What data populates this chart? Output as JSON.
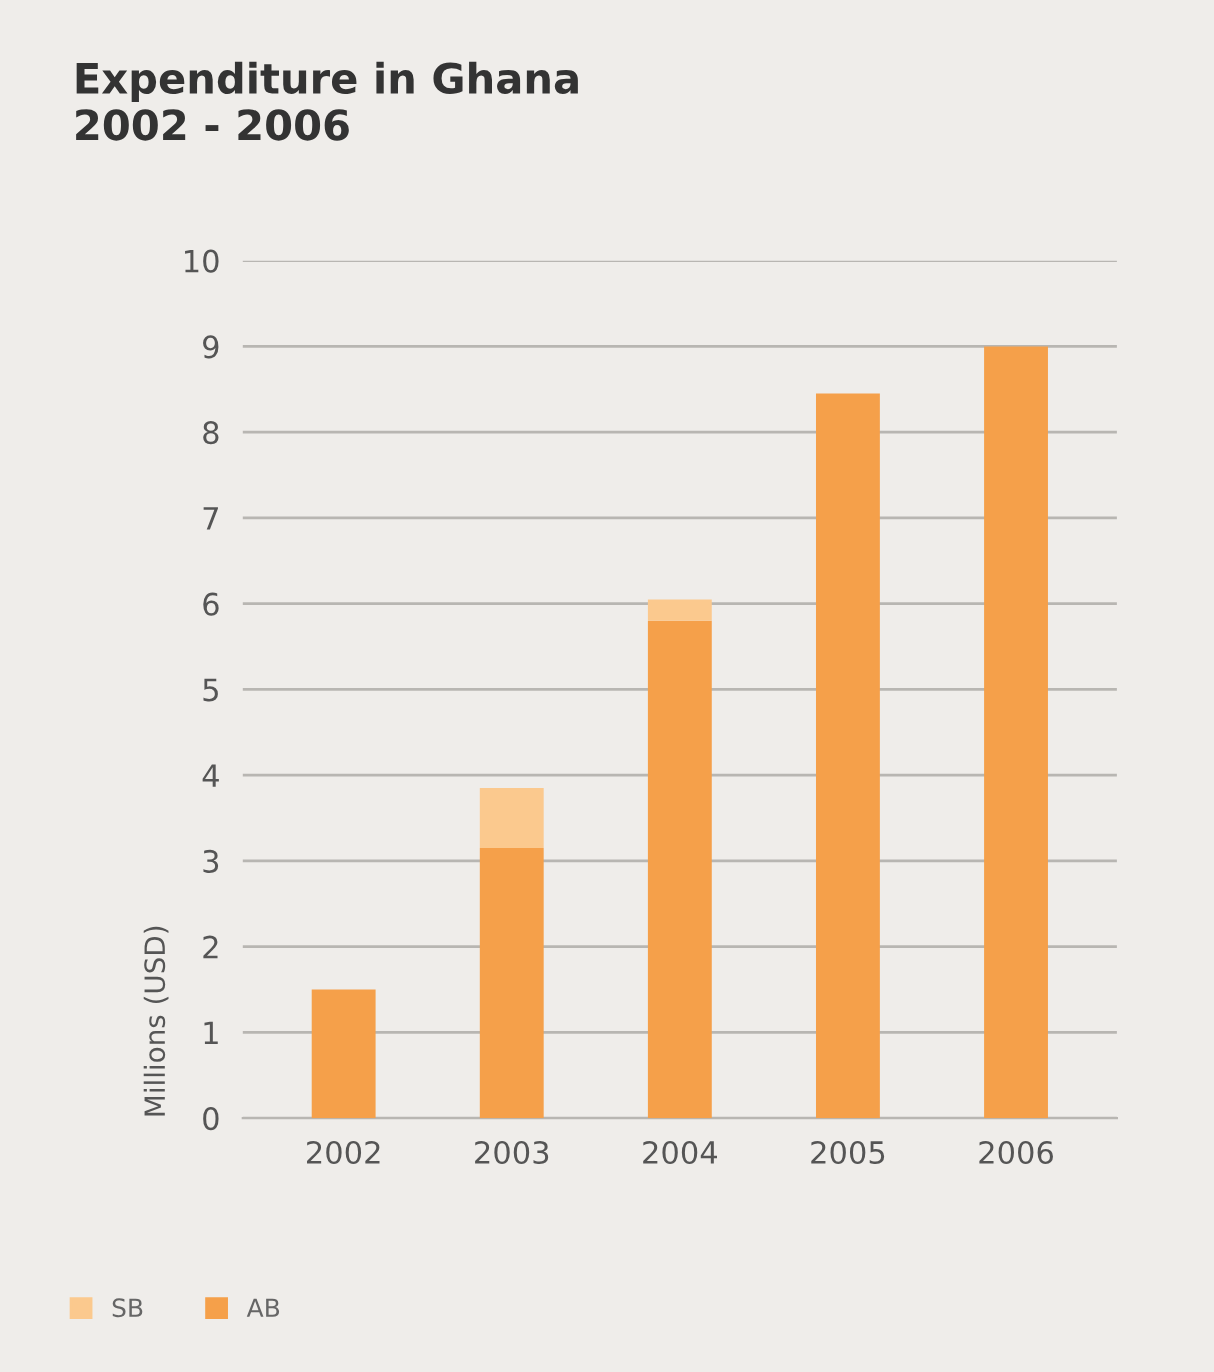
{
  "chart_data": {
    "type": "bar",
    "title": "Expenditure in Ghana\n2002 - 2006",
    "ylabel": "Millions (USD)",
    "categories": [
      "2002",
      "2003",
      "2004",
      "2005",
      "2006"
    ],
    "stacked": true,
    "series": [
      {
        "name": "AB",
        "color": "#f5a04a",
        "values": [
          1.5,
          3.15,
          5.8,
          8.45,
          9.0
        ]
      },
      {
        "name": "SB",
        "color": "#fbc98e",
        "values": [
          0,
          0.7,
          0.25,
          0,
          0
        ]
      }
    ],
    "ylim": [
      0,
      10
    ],
    "yticks": [
      0,
      1,
      2,
      3,
      4,
      5,
      6,
      7,
      8,
      9,
      10
    ],
    "grid": "y",
    "legend": "bottom left"
  }
}
